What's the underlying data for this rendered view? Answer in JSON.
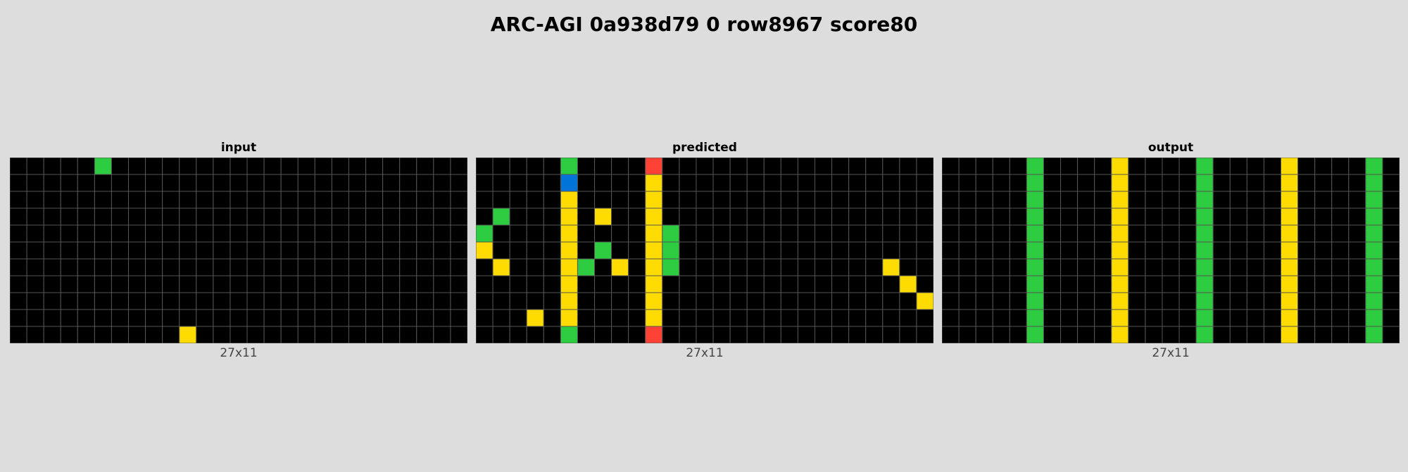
{
  "title": "ARC-AGI 0a938d79 0 row8967 score80",
  "palette": {
    "0": "#000000",
    "1": "#0074D9",
    "2": "#FF4136",
    "3": "#2ECC40",
    "4": "#FFDC00"
  },
  "grid_line_color": "#555555",
  "panels": [
    {
      "label": "input",
      "dims": "27x11",
      "rows": [
        "000003000000000000000000000",
        "000000000000000000000000000",
        "000000000000000000000000000",
        "000000000000000000000000000",
        "000000000000000000000000000",
        "000000000000000000000000000",
        "000000000000000000000000000",
        "000000000000000000000000000",
        "000000000000000000000000000",
        "000000000000000000000000000",
        "000000000040000000000000000"
      ]
    },
    {
      "label": "predicted",
      "dims": "27x11",
      "rows": [
        "000003000020000000000000000",
        "000001000040000000000000000",
        "000004000040000000000000000",
        "030004040040000000000000000",
        "300004000043000000000000000",
        "400004030043000000000000000",
        "040004304043000000000000400",
        "000004000040000000000000040",
        "000004000040000000000000004",
        "000404000040000000000000000",
        "000003000020000000000000000"
      ]
    },
    {
      "label": "output",
      "dims": "27x11",
      "rows": [
        "000003000040000300004000030",
        "000003000040000300004000030",
        "000003000040000300004000030",
        "000003000040000300004000030",
        "000003000040000300004000030",
        "000003000040000300004000030",
        "000003000040000300004000030",
        "000003000040000300004000030",
        "000003000040000300004000030",
        "000003000040000300004000030",
        "000003000040000300004000030"
      ]
    }
  ]
}
